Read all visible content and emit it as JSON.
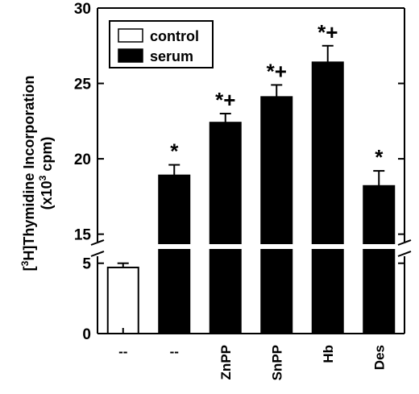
{
  "chart_data": {
    "type": "bar",
    "categories": [
      "--",
      "--",
      "ZnPP",
      "SnPP",
      "Hb",
      "Des"
    ],
    "series": [
      {
        "values": [
          4.7,
          18.9,
          22.4,
          24.1,
          26.4,
          18.2
        ],
        "errors": [
          0.3,
          0.7,
          0.6,
          0.8,
          1.1,
          1.0
        ],
        "colors": [
          "#ffffff",
          "#000000",
          "#000000",
          "#000000",
          "#000000",
          "#000000"
        ],
        "annotations": [
          "",
          "*",
          "*+",
          "*+",
          "*+",
          "*"
        ]
      }
    ],
    "ylabel": "[³H]Thymidine Incorporation (x10³ cpm)",
    "ylabel_line1_pre": "[",
    "ylabel_line1_sup": "3",
    "ylabel_line1_post": "H]Thymidine Incorporation",
    "ylabel_line2_pre": "(x10",
    "ylabel_line2_sup": "3",
    "ylabel_line2_post": " cpm)",
    "axis_break": true,
    "ylim_lower": [
      0,
      5.5
    ],
    "ylim_upper": [
      14.5,
      30
    ],
    "yticks_lower": [
      0,
      5
    ],
    "yticks_upper": [
      15,
      20,
      25,
      30
    ],
    "legend": {
      "placement": "top-left",
      "entries": [
        {
          "label": "control",
          "color": "#ffffff"
        },
        {
          "label": "serum",
          "color": "#000000"
        }
      ]
    },
    "grid": false
  }
}
